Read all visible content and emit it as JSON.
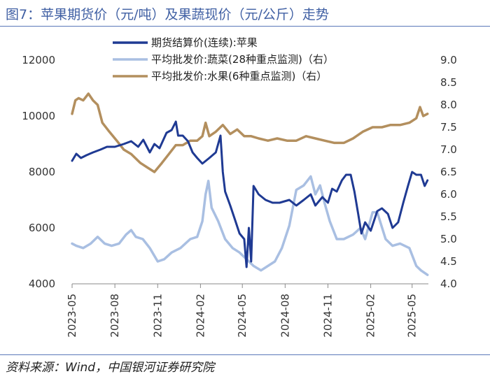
{
  "title": "图7：苹果期货价（元/吨）及果蔬现价（元/公斤）走势",
  "source": "资料来源：Wind，中国银河证券研究院",
  "chart_data": {
    "type": "line",
    "x_ticks": [
      "2023-05",
      "2023-08",
      "2023-11",
      "2024-02",
      "2024-05",
      "2024-08",
      "2024-11",
      "2025-02",
      "2025-05"
    ],
    "x_range": [
      "2023-05-01",
      "2025-06-05"
    ],
    "y_left_ticks": [
      "4000",
      "6000",
      "8000",
      "10000",
      "12000"
    ],
    "y_left_range": [
      4000,
      12000
    ],
    "y_right_ticks": [
      "4.0",
      "4.5",
      "5.0",
      "5.5",
      "6.0",
      "6.5",
      "7.0",
      "7.5",
      "8.0",
      "8.5",
      "9.0"
    ],
    "y_right_range": [
      4.0,
      9.0
    ],
    "legend_position": "top",
    "grid": false,
    "series": [
      {
        "name": "期货结算价(连续):苹果",
        "axis": "left",
        "color": "#1f3a93",
        "points": [
          [
            "2023-05-01",
            8400
          ],
          [
            "2023-05-10",
            8650
          ],
          [
            "2023-05-20",
            8500
          ],
          [
            "2023-06-01",
            8600
          ],
          [
            "2023-06-15",
            8700
          ],
          [
            "2023-07-01",
            8800
          ],
          [
            "2023-07-15",
            8900
          ],
          [
            "2023-08-01",
            8900
          ],
          [
            "2023-08-20",
            9000
          ],
          [
            "2023-09-05",
            9100
          ],
          [
            "2023-09-20",
            8900
          ],
          [
            "2023-10-01",
            9150
          ],
          [
            "2023-10-15",
            8700
          ],
          [
            "2023-10-25",
            9000
          ],
          [
            "2023-11-05",
            8850
          ],
          [
            "2023-11-20",
            9400
          ],
          [
            "2023-12-01",
            9500
          ],
          [
            "2023-12-10",
            9800
          ],
          [
            "2023-12-15",
            9300
          ],
          [
            "2023-12-25",
            9300
          ],
          [
            "2024-01-05",
            9100
          ],
          [
            "2024-01-15",
            8700
          ],
          [
            "2024-01-25",
            8500
          ],
          [
            "2024-02-05",
            8300
          ],
          [
            "2024-02-20",
            8500
          ],
          [
            "2024-03-05",
            8700
          ],
          [
            "2024-03-15",
            9300
          ],
          [
            "2024-03-20",
            8000
          ],
          [
            "2024-03-25",
            7300
          ],
          [
            "2024-04-05",
            6800
          ],
          [
            "2024-04-15",
            6300
          ],
          [
            "2024-04-25",
            5800
          ],
          [
            "2024-05-05",
            5600
          ],
          [
            "2024-05-10",
            4600
          ],
          [
            "2024-05-15",
            6000
          ],
          [
            "2024-05-20",
            4800
          ],
          [
            "2024-05-25",
            7500
          ],
          [
            "2024-06-05",
            7200
          ],
          [
            "2024-06-20",
            7000
          ],
          [
            "2024-07-05",
            6900
          ],
          [
            "2024-07-20",
            6900
          ],
          [
            "2024-08-10",
            7000
          ],
          [
            "2024-08-25",
            6800
          ],
          [
            "2024-09-10",
            7000
          ],
          [
            "2024-09-25",
            7200
          ],
          [
            "2024-10-05",
            6800
          ],
          [
            "2024-10-20",
            7100
          ],
          [
            "2024-11-01",
            6900
          ],
          [
            "2024-11-10",
            7400
          ],
          [
            "2024-11-20",
            7300
          ],
          [
            "2024-12-01",
            7700
          ],
          [
            "2024-12-10",
            7900
          ],
          [
            "2024-12-20",
            7900
          ],
          [
            "2024-12-28",
            7300
          ],
          [
            "2025-01-05",
            6500
          ],
          [
            "2025-01-12",
            5800
          ],
          [
            "2025-01-20",
            6200
          ],
          [
            "2025-02-01",
            5900
          ],
          [
            "2025-02-15",
            6600
          ],
          [
            "2025-02-25",
            6700
          ],
          [
            "2025-03-10",
            6500
          ],
          [
            "2025-03-20",
            6000
          ],
          [
            "2025-04-01",
            6200
          ],
          [
            "2025-04-12",
            6900
          ],
          [
            "2025-04-22",
            7500
          ],
          [
            "2025-05-01",
            8000
          ],
          [
            "2025-05-10",
            7900
          ],
          [
            "2025-05-20",
            7900
          ],
          [
            "2025-05-28",
            7500
          ],
          [
            "2025-06-03",
            7700
          ]
        ]
      },
      {
        "name": "平均批发价:蔬菜(28种重点监测)（右）",
        "axis": "right",
        "color": "#a9bfe2",
        "points": [
          [
            "2023-05-01",
            4.9
          ],
          [
            "2023-05-10",
            4.85
          ],
          [
            "2023-05-25",
            4.8
          ],
          [
            "2023-06-10",
            4.9
          ],
          [
            "2023-06-25",
            5.05
          ],
          [
            "2023-07-10",
            4.9
          ],
          [
            "2023-07-25",
            4.85
          ],
          [
            "2023-08-10",
            4.9
          ],
          [
            "2023-08-25",
            5.1
          ],
          [
            "2023-09-05",
            5.2
          ],
          [
            "2023-09-15",
            5.05
          ],
          [
            "2023-09-30",
            5.0
          ],
          [
            "2023-10-15",
            4.8
          ],
          [
            "2023-11-01",
            4.5
          ],
          [
            "2023-11-15",
            4.55
          ],
          [
            "2023-12-01",
            4.7
          ],
          [
            "2023-12-20",
            4.8
          ],
          [
            "2024-01-10",
            5.0
          ],
          [
            "2024-01-25",
            5.05
          ],
          [
            "2024-02-05",
            5.4
          ],
          [
            "2024-02-12",
            6.0
          ],
          [
            "2024-02-18",
            6.3
          ],
          [
            "2024-02-25",
            5.7
          ],
          [
            "2024-03-10",
            5.4
          ],
          [
            "2024-03-25",
            5.0
          ],
          [
            "2024-04-10",
            4.8
          ],
          [
            "2024-04-25",
            4.7
          ],
          [
            "2024-05-10",
            4.55
          ],
          [
            "2024-05-25",
            4.4
          ],
          [
            "2024-06-10",
            4.3
          ],
          [
            "2024-06-25",
            4.4
          ],
          [
            "2024-07-10",
            4.5
          ],
          [
            "2024-07-25",
            4.8
          ],
          [
            "2024-08-10",
            5.3
          ],
          [
            "2024-08-25",
            6.1
          ],
          [
            "2024-09-10",
            6.2
          ],
          [
            "2024-09-25",
            6.4
          ],
          [
            "2024-10-05",
            6.0
          ],
          [
            "2024-10-15",
            6.2
          ],
          [
            "2024-10-25",
            5.8
          ],
          [
            "2024-11-05",
            5.4
          ],
          [
            "2024-11-20",
            5.0
          ],
          [
            "2024-12-05",
            5.0
          ],
          [
            "2024-12-25",
            5.1
          ],
          [
            "2025-01-10",
            5.25
          ],
          [
            "2025-01-20",
            5.0
          ],
          [
            "2025-02-05",
            5.6
          ],
          [
            "2025-02-15",
            5.6
          ],
          [
            "2025-03-05",
            5.0
          ],
          [
            "2025-03-20",
            4.85
          ],
          [
            "2025-04-05",
            4.9
          ],
          [
            "2025-04-25",
            4.8
          ],
          [
            "2025-05-10",
            4.4
          ],
          [
            "2025-05-20",
            4.3
          ],
          [
            "2025-06-03",
            4.2
          ]
        ]
      },
      {
        "name": "平均批发价:水果(6种重点监测)（右）",
        "axis": "right",
        "color": "#b38f5e",
        "points": [
          [
            "2023-05-01",
            7.8
          ],
          [
            "2023-05-08",
            8.1
          ],
          [
            "2023-05-15",
            8.15
          ],
          [
            "2023-05-25",
            8.1
          ],
          [
            "2023-06-05",
            8.25
          ],
          [
            "2023-06-15",
            8.1
          ],
          [
            "2023-06-25",
            8.0
          ],
          [
            "2023-07-05",
            7.6
          ],
          [
            "2023-07-20",
            7.4
          ],
          [
            "2023-08-05",
            7.2
          ],
          [
            "2023-08-20",
            7.0
          ],
          [
            "2023-09-05",
            6.9
          ],
          [
            "2023-09-25",
            6.7
          ],
          [
            "2023-10-10",
            6.6
          ],
          [
            "2023-10-25",
            6.5
          ],
          [
            "2023-11-10",
            6.7
          ],
          [
            "2023-11-25",
            6.9
          ],
          [
            "2023-12-10",
            7.1
          ],
          [
            "2023-12-25",
            7.1
          ],
          [
            "2024-01-10",
            7.2
          ],
          [
            "2024-01-25",
            7.2
          ],
          [
            "2024-02-05",
            7.3
          ],
          [
            "2024-02-12",
            7.6
          ],
          [
            "2024-02-20",
            7.3
          ],
          [
            "2024-03-05",
            7.4
          ],
          [
            "2024-03-20",
            7.55
          ],
          [
            "2024-04-05",
            7.35
          ],
          [
            "2024-04-20",
            7.45
          ],
          [
            "2024-05-05",
            7.3
          ],
          [
            "2024-05-20",
            7.3
          ],
          [
            "2024-06-05",
            7.25
          ],
          [
            "2024-06-25",
            7.2
          ],
          [
            "2024-07-15",
            7.25
          ],
          [
            "2024-08-05",
            7.2
          ],
          [
            "2024-08-25",
            7.2
          ],
          [
            "2024-09-15",
            7.3
          ],
          [
            "2024-10-05",
            7.25
          ],
          [
            "2024-10-25",
            7.2
          ],
          [
            "2024-11-15",
            7.15
          ],
          [
            "2024-12-05",
            7.15
          ],
          [
            "2024-12-25",
            7.25
          ],
          [
            "2025-01-15",
            7.4
          ],
          [
            "2025-02-05",
            7.5
          ],
          [
            "2025-02-25",
            7.5
          ],
          [
            "2025-03-15",
            7.55
          ],
          [
            "2025-04-05",
            7.55
          ],
          [
            "2025-04-25",
            7.6
          ],
          [
            "2025-05-10",
            7.7
          ],
          [
            "2025-05-18",
            7.95
          ],
          [
            "2025-05-25",
            7.75
          ],
          [
            "2025-06-03",
            7.8
          ]
        ]
      }
    ]
  }
}
